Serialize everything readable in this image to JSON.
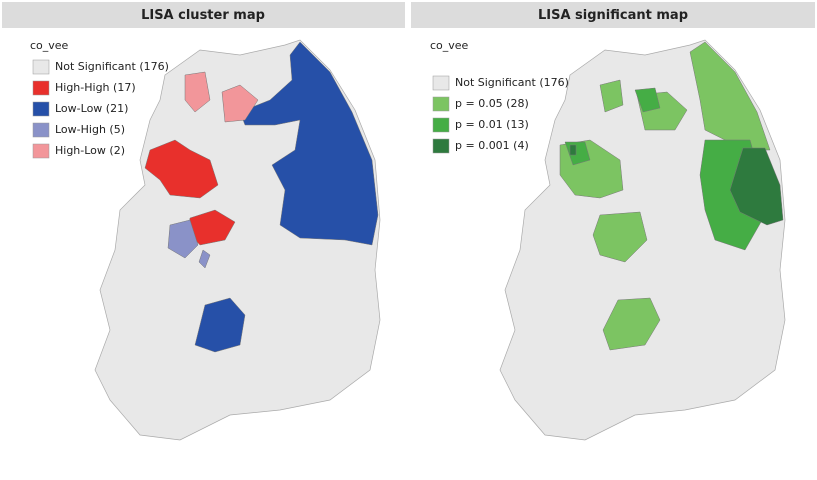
{
  "panels": [
    {
      "title": "LISA cluster map",
      "legend": {
        "title": "co_vee",
        "items": [
          {
            "label": "Not Significant (176)",
            "color": "#e8e8e8"
          },
          {
            "label": "High-High (17)",
            "color": "#e8302c"
          },
          {
            "label": "Low-Low (21)",
            "color": "#2650a8"
          },
          {
            "label": "Low-High (5)",
            "color": "#8a92c8"
          },
          {
            "label": "High-Low (2)",
            "color": "#f2969a"
          }
        ]
      }
    },
    {
      "title": "LISA significant map",
      "legend": {
        "title": "co_vee",
        "items": [
          {
            "label": "Not Significant (176)",
            "color": "#e8e8e8"
          },
          {
            "label": "p = 0.05 (28)",
            "color": "#7cc462"
          },
          {
            "label": "p = 0.01 (13)",
            "color": "#45ad45"
          },
          {
            "label": "p = 0.001 (4)",
            "color": "#2e7a3e"
          }
        ]
      }
    }
  ]
}
